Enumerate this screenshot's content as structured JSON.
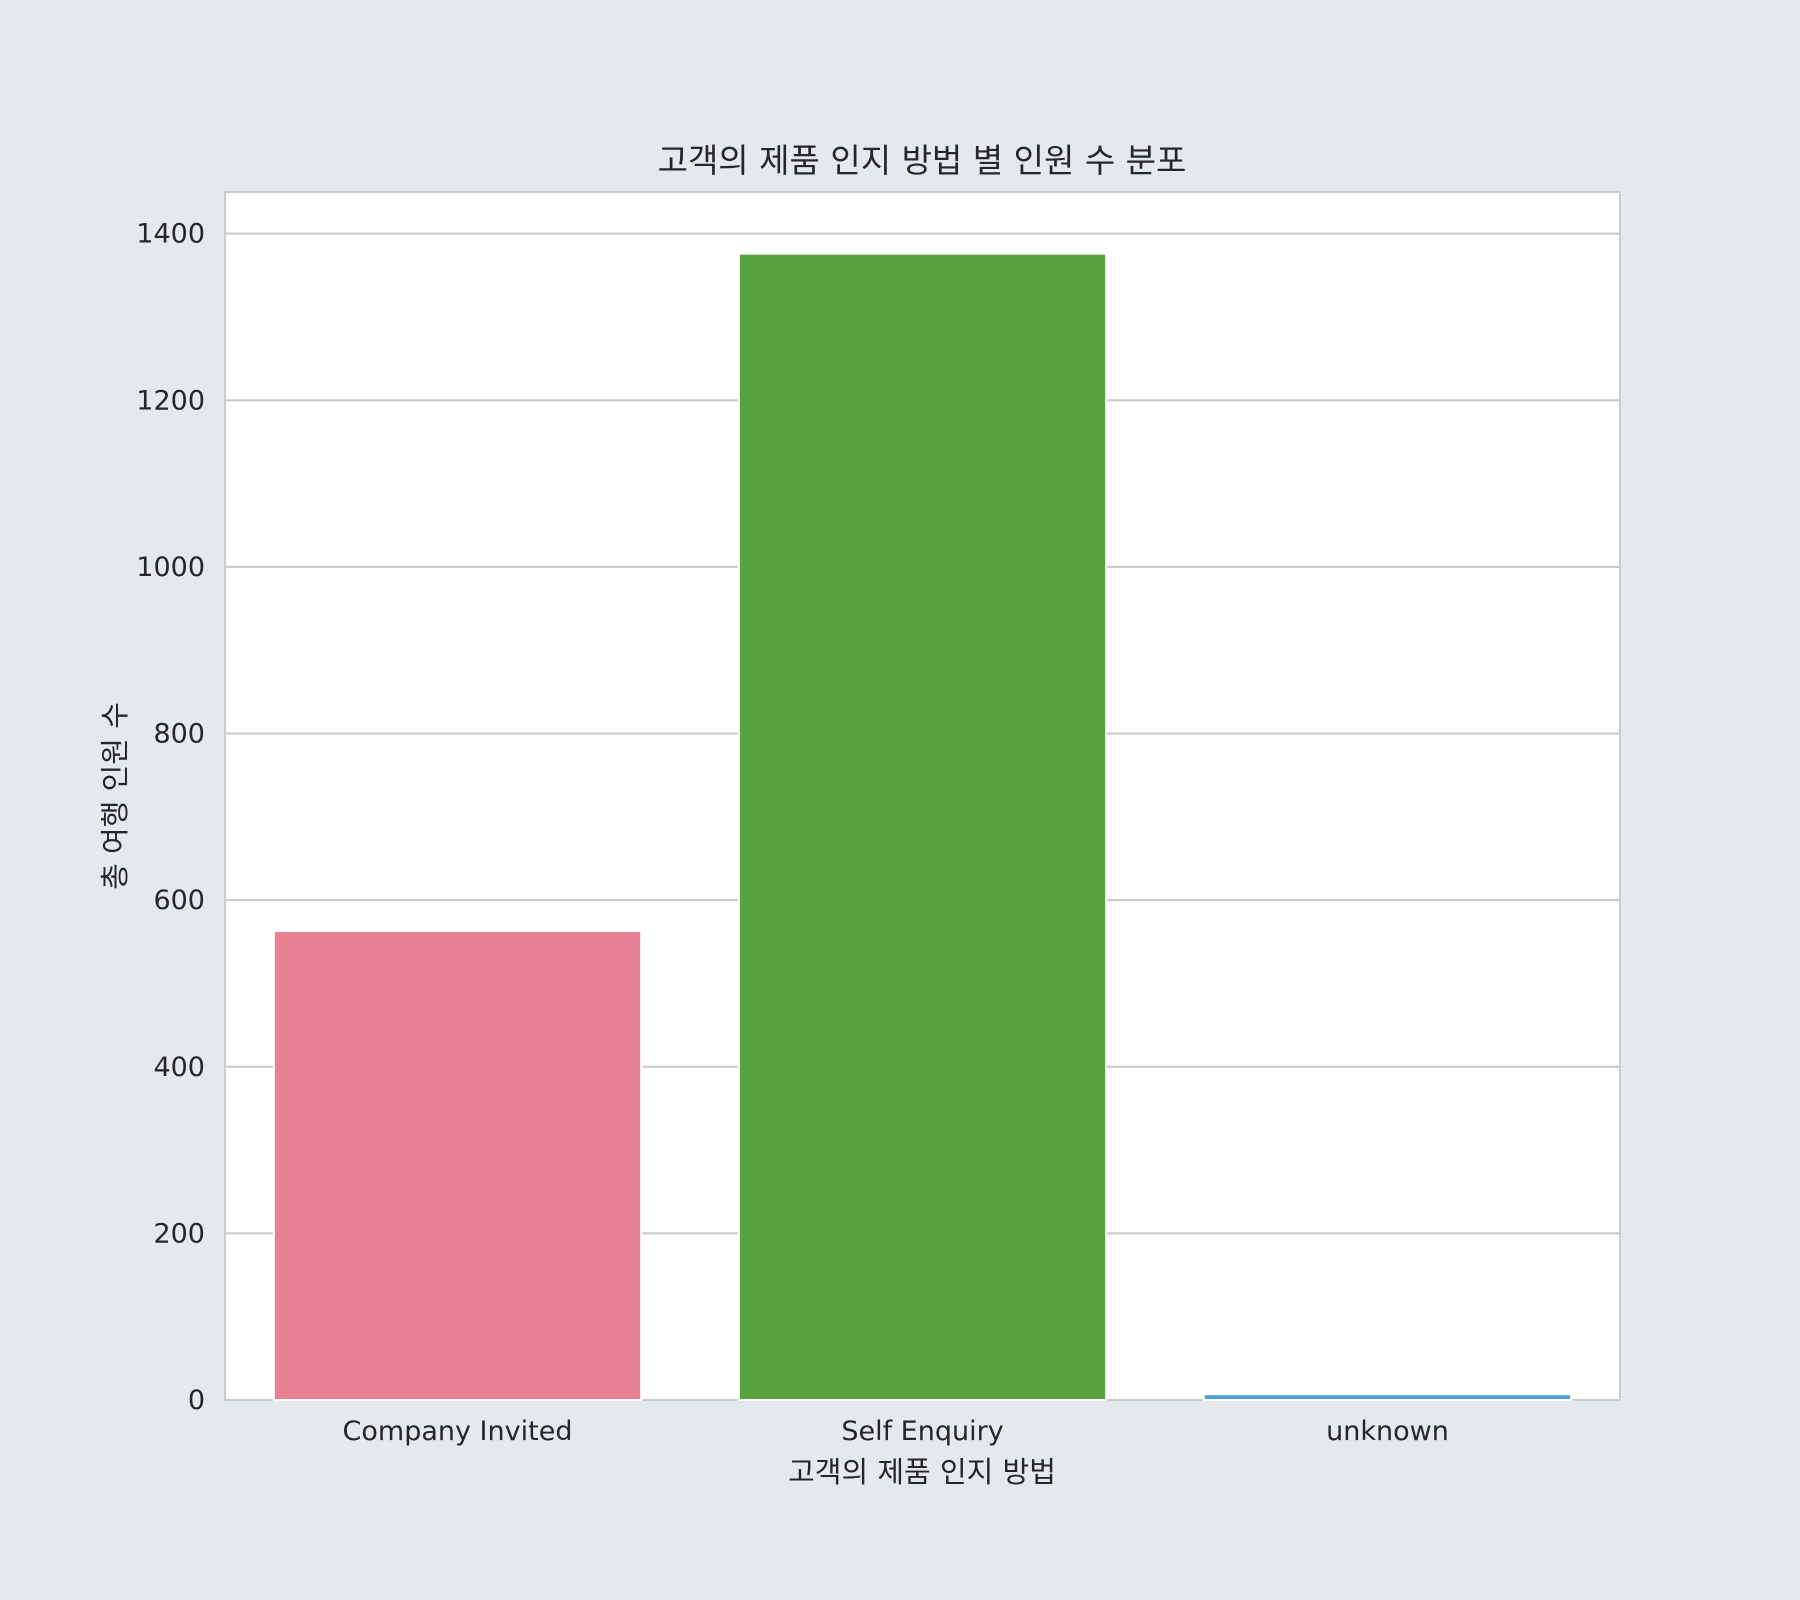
{
  "chart_data": {
    "type": "bar",
    "title": "고객의 제품 인지 방법 별 인원 수 분포",
    "xlabel": "고객의 제품 인지 방법",
    "ylabel": "총 여행 인원 수",
    "categories": [
      "Company Invited",
      "Self Enquiry",
      "unknown"
    ],
    "values": [
      563,
      1376,
      7
    ],
    "colors": [
      "#e78093",
      "#58a240",
      "#4fa0d8"
    ],
    "ylim": [
      0,
      1450
    ],
    "yticks": [
      0,
      200,
      400,
      600,
      800,
      1000,
      1200,
      1400
    ],
    "grid": true,
    "background_color": "#e5e8ed",
    "plot_background_color": "#ffffff",
    "grid_color": "#c8c8c8"
  }
}
